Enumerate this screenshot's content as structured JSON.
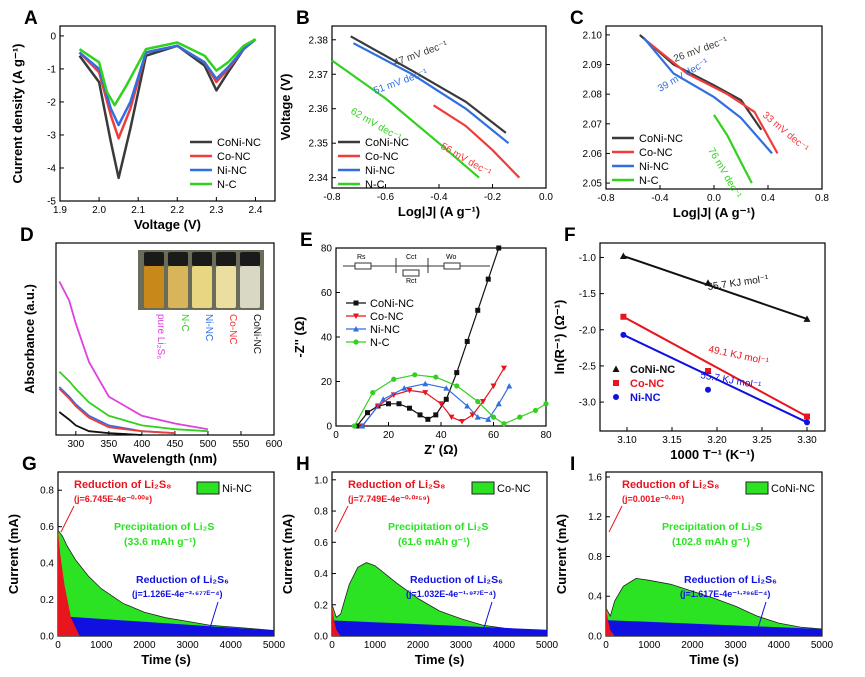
{
  "colors": {
    "coni": "#3a3a3a",
    "co": "#f03c3c",
    "ni": "#2f6fe0",
    "nc": "#33d11f",
    "black": "#111111",
    "red": "#e8141e",
    "blue": "#1010e0",
    "green": "#2be323",
    "magenta": "#e040e0"
  },
  "chart_data": [
    {
      "panel": "A",
      "type": "line",
      "xlabel": "Voltage (V)",
      "ylabel": "Current density (A g⁻¹)",
      "xlim": [
        1.9,
        2.45
      ],
      "ylim": [
        -5,
        0.3
      ],
      "xticks": [
        "1.9",
        "2.0",
        "2.1",
        "2.2",
        "2.3",
        "2.4"
      ],
      "yticks": [
        "-5",
        "-4",
        "-3",
        "-2",
        "-1",
        "0"
      ],
      "legend": [
        "CoNi-NC",
        "Co-NC",
        "Ni-NC",
        "N-C"
      ],
      "legend_position": "bottom-right",
      "series": [
        {
          "name": "CoNi-NC",
          "x": [
            1.95,
            2.0,
            2.03,
            2.05,
            2.08,
            2.12,
            2.2,
            2.27,
            2.3,
            2.33,
            2.37,
            2.4
          ],
          "y": [
            -0.6,
            -1.4,
            -3.2,
            -4.3,
            -2.8,
            -0.6,
            -0.3,
            -0.9,
            -1.65,
            -1.1,
            -0.4,
            -0.1
          ]
        },
        {
          "name": "Co-NC",
          "x": [
            1.95,
            2.0,
            2.03,
            2.05,
            2.08,
            2.12,
            2.2,
            2.27,
            2.3,
            2.33,
            2.37,
            2.4
          ],
          "y": [
            -0.5,
            -1.1,
            -2.4,
            -3.1,
            -2.2,
            -0.5,
            -0.3,
            -0.8,
            -1.4,
            -1.0,
            -0.4,
            -0.1
          ]
        },
        {
          "name": "Ni-NC",
          "x": [
            1.95,
            2.0,
            2.03,
            2.05,
            2.08,
            2.12,
            2.2,
            2.27,
            2.3,
            2.33,
            2.37,
            2.4
          ],
          "y": [
            -0.5,
            -1.0,
            -2.2,
            -2.7,
            -2.0,
            -0.5,
            -0.3,
            -0.8,
            -1.3,
            -0.95,
            -0.4,
            -0.1
          ]
        },
        {
          "name": "N-C",
          "x": [
            1.95,
            2.0,
            2.02,
            2.04,
            2.07,
            2.12,
            2.2,
            2.27,
            2.3,
            2.33,
            2.37,
            2.4
          ],
          "y": [
            -0.4,
            -0.8,
            -1.7,
            -2.1,
            -1.5,
            -0.4,
            -0.2,
            -0.6,
            -1.05,
            -0.8,
            -0.3,
            -0.1
          ]
        }
      ]
    },
    {
      "panel": "B",
      "type": "line",
      "xlabel": "Log|J| (A g⁻¹)",
      "ylabel": "Voltage (V)",
      "xlim": [
        -0.8,
        0.0
      ],
      "ylim": [
        2.337,
        2.384
      ],
      "xticks": [
        "-0.8",
        "-0.6",
        "-0.4",
        "-0.2",
        "0.0"
      ],
      "yticks": [
        "2.34",
        "2.35",
        "2.36",
        "2.37",
        "2.38"
      ],
      "legend": [
        "CoNi-NC",
        "Co-NC",
        "Ni-NC",
        "N-C"
      ],
      "legend_position": "bottom-left",
      "annotations": [
        "47 mV dec⁻¹",
        "51 mV dec⁻¹",
        "62 mV dec⁻¹",
        "56 mV dec⁻¹"
      ],
      "series": [
        {
          "name": "CoNi-NC",
          "x": [
            -0.73,
            -0.5,
            -0.3,
            -0.15
          ],
          "y": [
            2.381,
            2.371,
            2.362,
            2.353
          ]
        },
        {
          "name": "Co-NC",
          "x": [
            -0.42,
            -0.3,
            -0.2,
            -0.1
          ],
          "y": [
            2.361,
            2.355,
            2.348,
            2.34
          ]
        },
        {
          "name": "Ni-NC",
          "x": [
            -0.72,
            -0.5,
            -0.3,
            -0.14
          ],
          "y": [
            2.379,
            2.37,
            2.36,
            2.35
          ]
        },
        {
          "name": "N-C",
          "x": [
            -0.8,
            -0.6,
            -0.4,
            -0.25
          ],
          "y": [
            2.374,
            2.363,
            2.35,
            2.34
          ]
        }
      ]
    },
    {
      "panel": "C",
      "type": "line",
      "xlabel": "Log|J| (A g⁻¹)",
      "ylabel": "",
      "xlim": [
        -0.8,
        0.8
      ],
      "ylim": [
        2.048,
        2.103
      ],
      "xticks": [
        "-0.8",
        "-0.4",
        "0.0",
        "0.4",
        "0.8"
      ],
      "yticks": [
        "2.05",
        "2.06",
        "2.07",
        "2.08",
        "2.09",
        "2.10"
      ],
      "legend": [
        "CoNi-NC",
        "Co-NC",
        "Ni-NC",
        "N-C"
      ],
      "legend_position": "bottom-left",
      "annotations": [
        "26 mV dec⁻¹",
        "33 mV dec⁻¹",
        "39 mV dec⁻¹",
        "76 mV dec⁻¹"
      ],
      "series": [
        {
          "name": "CoNi-NC",
          "x": [
            -0.55,
            -0.3,
            0.0,
            0.2,
            0.35
          ],
          "y": [
            2.1,
            2.09,
            2.083,
            2.078,
            2.068
          ]
        },
        {
          "name": "Co-NC",
          "x": [
            -0.5,
            -0.2,
            0.1,
            0.3,
            0.47
          ],
          "y": [
            2.098,
            2.087,
            2.08,
            2.074,
            2.06
          ]
        },
        {
          "name": "Ni-NC",
          "x": [
            -0.52,
            -0.3,
            0.0,
            0.2,
            0.43
          ],
          "y": [
            2.099,
            2.087,
            2.079,
            2.072,
            2.06
          ]
        },
        {
          "name": "N-C",
          "x": [
            0.0,
            0.1,
            0.2,
            0.28
          ],
          "y": [
            2.073,
            2.066,
            2.057,
            2.05
          ]
        }
      ]
    },
    {
      "panel": "D",
      "type": "line",
      "xlabel": "Wavelength (nm)",
      "ylabel": "Absorbance (a.u.)",
      "xlim": [
        270,
        600
      ],
      "ylim": [
        0,
        1
      ],
      "xticks": [
        "300",
        "350",
        "400",
        "450",
        "500",
        "550",
        "600"
      ],
      "inset_labels": [
        "pure Li₂S₆",
        "N-C",
        "Ni-NC",
        "Co-NC",
        "CoNi-NC"
      ],
      "series": [
        {
          "name": "pure Li₂S₆",
          "x": [
            275,
            290,
            300,
            320,
            350,
            400,
            450,
            500
          ],
          "y": [
            0.8,
            0.7,
            0.58,
            0.38,
            0.2,
            0.1,
            0.06,
            0.03
          ]
        },
        {
          "name": "N-C",
          "x": [
            275,
            290,
            300,
            320,
            350,
            400,
            450,
            500
          ],
          "y": [
            0.33,
            0.28,
            0.24,
            0.17,
            0.1,
            0.05,
            0.03,
            0.02
          ]
        },
        {
          "name": "Ni-NC",
          "x": [
            275,
            290,
            300,
            320,
            350,
            400,
            450
          ],
          "y": [
            0.25,
            0.2,
            0.16,
            0.1,
            0.05,
            0.02,
            0.01
          ]
        },
        {
          "name": "Co-NC",
          "x": [
            275,
            290,
            300,
            320,
            350,
            400,
            450
          ],
          "y": [
            0.24,
            0.19,
            0.15,
            0.09,
            0.04,
            0.02,
            0.01
          ]
        },
        {
          "name": "CoNi-NC",
          "x": [
            275,
            290,
            300,
            320,
            350,
            400
          ],
          "y": [
            0.12,
            0.08,
            0.05,
            0.02,
            0.01,
            0.0
          ]
        }
      ]
    },
    {
      "panel": "E",
      "type": "scatter",
      "xlabel": "Z' (Ω)",
      "ylabel": "-Z'' (Ω)",
      "xlim": [
        0,
        80
      ],
      "ylim": [
        0,
        80
      ],
      "xticks": [
        "0",
        "20",
        "40",
        "60",
        "80"
      ],
      "yticks": [
        "0",
        "20",
        "40",
        "60",
        "80"
      ],
      "legend": [
        "CoNi-NC",
        "Co-NC",
        "Ni-NC",
        "N-C"
      ],
      "legend_position": "center-left",
      "circuit_labels": [
        "Rs",
        "Cct",
        "Rct",
        "Wo"
      ],
      "series": [
        {
          "name": "CoNi-NC",
          "x": [
            8,
            12,
            16,
            20,
            24,
            28,
            32,
            35,
            38,
            42,
            46,
            50,
            54,
            58,
            62
          ],
          "y": [
            0,
            6,
            9,
            10,
            10,
            8,
            5,
            3,
            5,
            12,
            24,
            38,
            52,
            66,
            80
          ]
        },
        {
          "name": "Co-NC",
          "x": [
            10,
            16,
            22,
            28,
            34,
            40,
            44,
            48,
            52,
            56,
            60,
            64
          ],
          "y": [
            0,
            9,
            14,
            16,
            15,
            10,
            4,
            2,
            5,
            11,
            18,
            26
          ]
        },
        {
          "name": "Ni-NC",
          "x": [
            10,
            18,
            26,
            34,
            42,
            50,
            54,
            58,
            62,
            66
          ],
          "y": [
            0,
            12,
            17,
            19,
            17,
            9,
            4,
            3,
            10,
            18
          ]
        },
        {
          "name": "N-C",
          "x": [
            7,
            14,
            22,
            30,
            38,
            46,
            54,
            60,
            64,
            70,
            76,
            80
          ],
          "y": [
            0,
            15,
            21,
            23,
            22,
            18,
            11,
            4,
            1,
            4,
            7,
            10
          ]
        }
      ]
    },
    {
      "panel": "F",
      "type": "scatter",
      "xlabel": "1000 T⁻¹ (K⁻¹)",
      "ylabel": "ln(R⁻¹) (Ω⁻¹)",
      "xlim": [
        3.07,
        3.32
      ],
      "ylim": [
        -3.4,
        -0.8
      ],
      "xticks": [
        "3.10",
        "3.15",
        "3.20",
        "3.25",
        "3.30"
      ],
      "yticks": [
        "-1.0",
        "-1.5",
        "-2.0",
        "-2.5",
        "-3.0"
      ],
      "legend": [
        "CoNi-NC",
        "Co-NC",
        "Ni-NC"
      ],
      "legend_position": "bottom-left",
      "annotations": [
        "35.7 KJ mol⁻¹",
        "49.1 KJ mol⁻¹",
        "55.7 KJ mol⁻¹"
      ],
      "series": [
        {
          "name": "CoNi-NC",
          "x": [
            3.096,
            3.19,
            3.3
          ],
          "y": [
            -0.98,
            -1.35,
            -1.85
          ]
        },
        {
          "name": "Co-NC",
          "x": [
            3.096,
            3.19,
            3.3
          ],
          "y": [
            -1.82,
            -2.57,
            -3.2
          ]
        },
        {
          "name": "Ni-NC",
          "x": [
            3.096,
            3.19,
            3.3
          ],
          "y": [
            -2.07,
            -2.83,
            -3.28
          ]
        }
      ]
    },
    {
      "panel": "G",
      "type": "area",
      "xlabel": "Time (s)",
      "ylabel": "Current (mA)",
      "xlim": [
        0,
        5000
      ],
      "ylim": [
        0,
        0.9
      ],
      "xticks": [
        "0",
        "1000",
        "2000",
        "3000",
        "4000",
        "5000"
      ],
      "yticks": [
        "0.0",
        "0.2",
        "0.4",
        "0.6",
        "0.8"
      ],
      "legend": [
        "Ni-NC"
      ],
      "annotations": {
        "red_title": "Reduction of Li₂S₈",
        "red_eq": "(j=6.745E-4e⁻⁰·⁰⁰⁸)",
        "green_title": "Precipitation of Li₂S",
        "green_cap": "(33.6 mAh g⁻¹)",
        "blue_title": "Reduction of Li₂S₆",
        "blue_eq": "(j=1.126E-4e⁻²·⁶⁷⁷ᴱ⁻⁴)"
      },
      "total_x": [
        0,
        100,
        200,
        400,
        700,
        1000,
        1500,
        2000,
        2500,
        3000,
        3500,
        4000,
        4500,
        5000
      ],
      "total_y": [
        0.58,
        0.55,
        0.5,
        0.42,
        0.33,
        0.26,
        0.18,
        0.13,
        0.1,
        0.08,
        0.06,
        0.05,
        0.04,
        0.03
      ],
      "red_x": [
        0,
        50,
        150,
        300,
        500
      ],
      "red_y": [
        0.58,
        0.45,
        0.28,
        0.1,
        0.0
      ],
      "blue_x": [
        0,
        5000
      ],
      "blue_y": [
        0.11,
        0.03
      ]
    },
    {
      "panel": "H",
      "type": "area",
      "xlabel": "Time (s)",
      "ylabel": "Current (mA)",
      "xlim": [
        0,
        5000
      ],
      "ylim": [
        0,
        1.05
      ],
      "xticks": [
        "0",
        "1000",
        "2000",
        "3000",
        "4000",
        "5000"
      ],
      "yticks": [
        "0.0",
        "0.2",
        "0.4",
        "0.6",
        "0.8",
        "1.0"
      ],
      "legend": [
        "Co-NC"
      ],
      "annotations": {
        "red_title": "Reduction of Li₂S₈",
        "red_eq": "(j=7.749E-4e⁻⁰·⁰²⁵⁹)",
        "green_title": "Precipitation of Li₂S",
        "green_cap": "(61.6 mAh g⁻¹)",
        "blue_title": "Reduction of Li₂S₆",
        "blue_eq": "(j=1.032E-4e⁻¹·⁹²⁷ᴱ⁻⁴)"
      },
      "total_x": [
        0,
        100,
        200,
        400,
        600,
        800,
        1000,
        1500,
        2000,
        2500,
        3000,
        3500,
        4000,
        4500,
        5000
      ],
      "total_y": [
        0.2,
        0.12,
        0.14,
        0.33,
        0.44,
        0.47,
        0.45,
        0.34,
        0.24,
        0.16,
        0.11,
        0.07,
        0.05,
        0.04,
        0.03
      ],
      "red_x": [
        0,
        50,
        100,
        200
      ],
      "red_y": [
        0.2,
        0.1,
        0.04,
        0.0
      ],
      "blue_x": [
        0,
        5000
      ],
      "blue_y": [
        0.1,
        0.04
      ]
    },
    {
      "panel": "I",
      "type": "area",
      "xlabel": "Time (s)",
      "ylabel": "Current (mA)",
      "xlim": [
        0,
        5000
      ],
      "ylim": [
        0,
        1.65
      ],
      "xticks": [
        "0",
        "1000",
        "2000",
        "3000",
        "4000",
        "5000"
      ],
      "yticks": [
        "0.0",
        "0.4",
        "0.8",
        "1.2",
        "1.6"
      ],
      "legend": [
        "CoNi-NC"
      ],
      "annotations": {
        "red_title": "Reduction of Li₂S₈",
        "red_eq": "(j=0.001e⁻⁰·⁰²¹)",
        "green_title": "Precipitation of Li₂S",
        "green_cap": "(102.8 mAh g⁻¹)",
        "blue_title": "Reduction of Li₂S₆",
        "blue_eq": "(j=1.617E-4e⁻¹·²⁹⁶ᴱ⁻⁴)"
      },
      "total_x": [
        0,
        100,
        200,
        400,
        700,
        1000,
        1500,
        2000,
        2500,
        3000,
        3500,
        4000,
        4500,
        5000
      ],
      "total_y": [
        0.28,
        0.2,
        0.35,
        0.5,
        0.58,
        0.56,
        0.52,
        0.45,
        0.38,
        0.3,
        0.2,
        0.13,
        0.09,
        0.07
      ],
      "red_x": [
        0,
        50,
        100,
        200
      ],
      "red_y": [
        0.28,
        0.15,
        0.06,
        0.0
      ],
      "blue_x": [
        0,
        5000
      ],
      "blue_y": [
        0.16,
        0.07
      ]
    }
  ]
}
